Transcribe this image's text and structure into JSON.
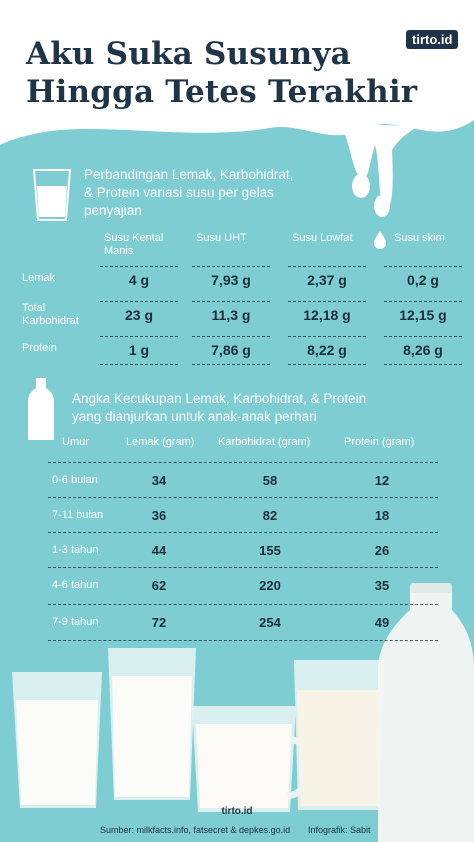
{
  "header": {
    "title_lines": [
      "Aku Suka Susunya",
      "Hingga Tetes Terakhir"
    ],
    "logo": "tirto.id"
  },
  "table1": {
    "caption": [
      "Perbandingan Lemak, Karbohidrat,",
      "& Protein variasi susu per gelas",
      "penyajian"
    ],
    "columns": [
      "Susu Kental Manis",
      "Susu UHT",
      "Susu Lowfat",
      "Susu skim"
    ],
    "rows": [
      {
        "label": "Lemak",
        "values": [
          "4 g",
          "7,93 g",
          "2,37 g",
          "0,2 g"
        ]
      },
      {
        "label": "Total Karbohidrat",
        "values": [
          "23 g",
          "11,3 g",
          "12,18 g",
          "12,15 g"
        ]
      },
      {
        "label": "Protein",
        "values": [
          "1 g",
          "7,86 g",
          "8,22 g",
          "8,26 g"
        ]
      }
    ]
  },
  "table2": {
    "caption": [
      "Angka Kecukupan Lemak, Karbohidrat, & Protein",
      "yang dianjurkan untuk anak-anak perhari"
    ],
    "columns": [
      "Umur",
      "Lemak (gram)",
      "Karbohidrat (gram)",
      "Protein (gram)"
    ],
    "rows": [
      [
        "0-6 bulan",
        34,
        58,
        12
      ],
      [
        "7-11 bulan",
        36,
        82,
        18
      ],
      [
        "1-3 tahun",
        44,
        155,
        26
      ],
      [
        "4-6 tahun",
        62,
        220,
        35
      ],
      [
        "7-9 tahun",
        72,
        254,
        49
      ]
    ]
  },
  "footer": {
    "logo": "tirto.id",
    "source": "Sumber: milkfacts.info, fatsecret & depkes.go.id",
    "credit": "Infografik: Sabit"
  }
}
